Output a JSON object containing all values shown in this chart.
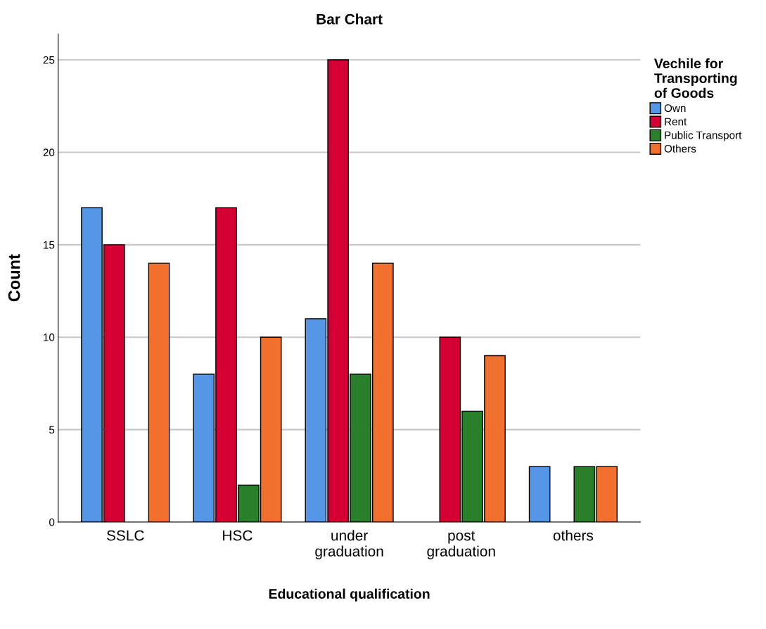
{
  "chart_data": {
    "type": "bar",
    "title": "Bar Chart",
    "xlabel": "Educational qualification",
    "ylabel": "Count",
    "legend_title": "Vechile for\nTransporting\nof Goods",
    "categories": [
      "SSLC",
      "HSC",
      "under\ngraduation",
      "post\ngraduation",
      "others"
    ],
    "series": [
      {
        "name": "Own",
        "color": "#5596e6",
        "values": [
          17,
          8,
          11,
          null,
          3
        ]
      },
      {
        "name": "Rent",
        "color": "#d40034",
        "values": [
          15,
          17,
          25,
          10,
          null
        ]
      },
      {
        "name": "Public Transport",
        "color": "#2a7f2a",
        "values": [
          null,
          2,
          8,
          6,
          3
        ]
      },
      {
        "name": "Others",
        "color": "#f2702e",
        "values": [
          14,
          10,
          14,
          9,
          3
        ]
      }
    ],
    "ylim": [
      0,
      26.4
    ],
    "yticks": [
      0,
      5,
      10,
      15,
      20,
      25
    ],
    "grid": "y",
    "legend": "right"
  }
}
